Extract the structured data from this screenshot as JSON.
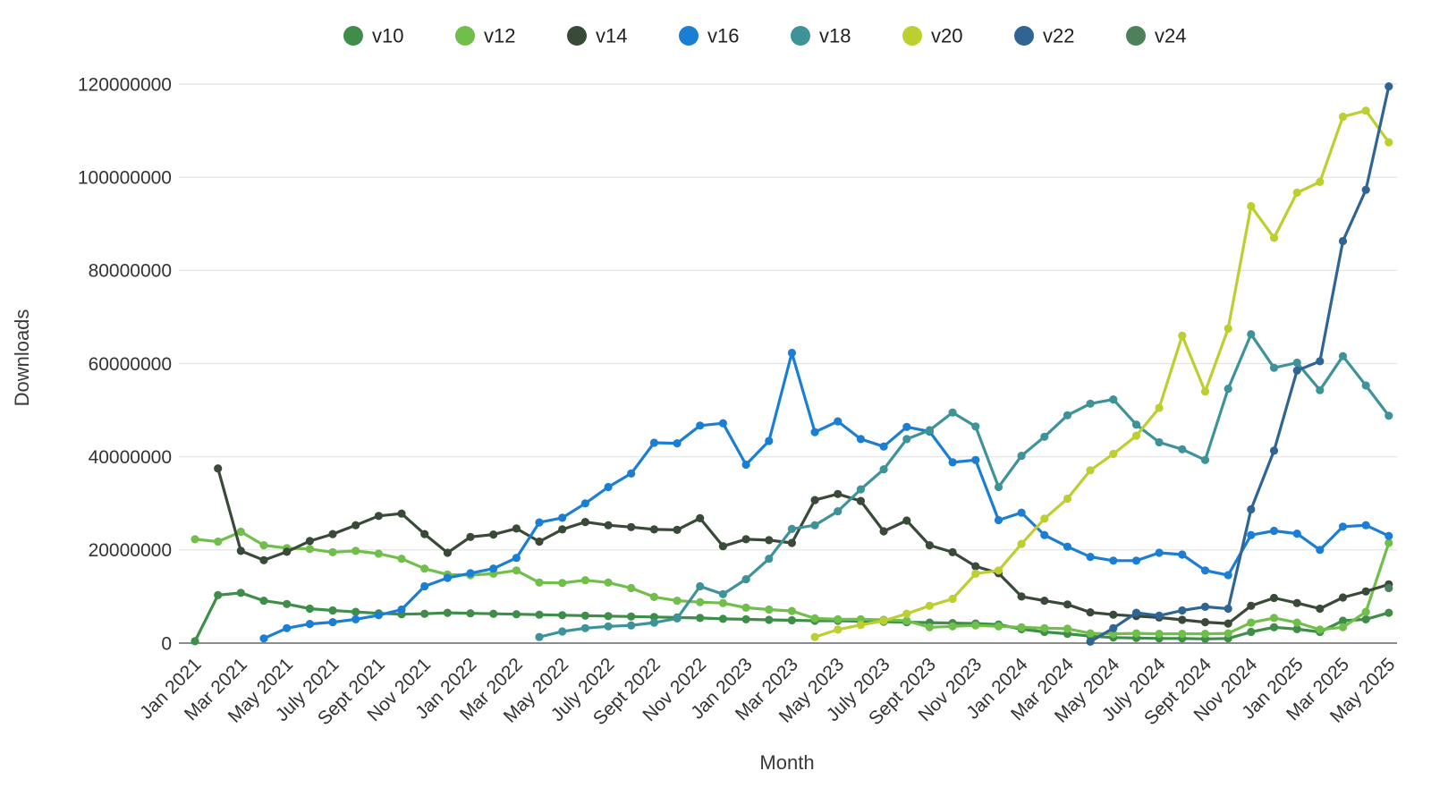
{
  "chart_data": {
    "type": "line",
    "title": "",
    "xlabel": "Month",
    "ylabel": "Downloads",
    "unit": "downloads (absolute count, values stored in millions)",
    "ylim_millions": [
      0,
      120
    ],
    "ytick_step_millions": 20,
    "ytick_labels": [
      "0",
      "20000000",
      "40000000",
      "60000000",
      "80000000",
      "100000000",
      "120000000"
    ],
    "grid": "horizontal",
    "legend_position": "top",
    "x": [
      "Jan 2021",
      "Feb 2021",
      "Mar 2021",
      "Apr 2021",
      "May 2021",
      "Jun 2021",
      "Jul 2021",
      "Aug 2021",
      "Sep 2021",
      "Oct 2021",
      "Nov 2021",
      "Dec 2021",
      "Jan 2022",
      "Feb 2022",
      "Mar 2022",
      "Apr 2022",
      "May 2022",
      "Jun 2022",
      "Jul 2022",
      "Aug 2022",
      "Sep 2022",
      "Oct 2022",
      "Nov 2022",
      "Dec 2022",
      "Jan 2023",
      "Feb 2023",
      "Mar 2023",
      "Apr 2023",
      "May 2023",
      "Jun 2023",
      "Jul 2023",
      "Aug 2023",
      "Sep 2023",
      "Oct 2023",
      "Nov 2023",
      "Dec 2023",
      "Jan 2024",
      "Feb 2024",
      "Mar 2024",
      "Apr 2024",
      "May 2024",
      "Jun 2024",
      "Jul 2024",
      "Aug 2024",
      "Sep 2024",
      "Oct 2024",
      "Nov 2024",
      "Dec 2024",
      "Jan 2025",
      "Feb 2025",
      "Mar 2025",
      "Apr 2025",
      "May 2025"
    ],
    "xtick_every": 2,
    "xtick_labels": [
      "Jan 2021",
      "Mar 2021",
      "May 2021",
      "July 2021",
      "Sept 2021",
      "Nov 2021",
      "Jan 2022",
      "Mar 2022",
      "May 2022",
      "July 2022",
      "Sept 2022",
      "Nov 2022",
      "Jan 2023",
      "Mar 2023",
      "May 2023",
      "July 2023",
      "Sept 2023",
      "Nov 2023",
      "Jan 2024",
      "Mar 2024",
      "May 2024",
      "July 2024",
      "Sept 2024",
      "Nov 2024",
      "Jan 2025",
      "Mar 2025",
      "May 2025"
    ],
    "series": [
      {
        "name": "v10",
        "color": "#3e8e49",
        "values_millions": [
          0.4,
          10.3,
          10.8,
          9.1,
          8.4,
          7.4,
          7.0,
          6.7,
          6.4,
          6.2,
          6.3,
          6.5,
          6.4,
          6.3,
          6.2,
          6.1,
          6.0,
          5.9,
          5.8,
          5.7,
          5.6,
          5.5,
          5.4,
          5.2,
          5.1,
          5.0,
          4.9,
          4.8,
          4.8,
          4.7,
          4.6,
          4.5,
          4.4,
          4.3,
          4.2,
          4.0,
          3.0,
          2.4,
          2.0,
          1.5,
          1.2,
          1.1,
          1.0,
          1.0,
          0.9,
          1.0,
          2.4,
          3.4,
          3.0,
          2.4,
          4.8,
          5.1,
          6.5
        ]
      },
      {
        "name": "v12",
        "color": "#70bf4a",
        "values_millions": [
          22.3,
          21.8,
          23.9,
          21.0,
          20.4,
          20.2,
          19.5,
          19.8,
          19.2,
          18.1,
          16.0,
          14.7,
          14.6,
          14.9,
          15.6,
          13.0,
          12.9,
          13.5,
          13.0,
          11.8,
          9.9,
          9.1,
          8.8,
          8.6,
          7.6,
          7.2,
          6.9,
          5.3,
          5.1,
          5.1,
          5.0,
          4.8,
          3.4,
          3.6,
          3.8,
          3.6,
          3.4,
          3.2,
          3.1,
          2.1,
          2.0,
          2.1,
          2.0,
          2.0,
          2.0,
          2.1,
          4.4,
          5.4,
          4.4,
          2.9,
          3.4,
          6.7,
          21.5
        ]
      },
      {
        "name": "v14",
        "color": "#3a4a38",
        "values_millions": [
          null,
          37.5,
          19.8,
          17.8,
          19.6,
          21.9,
          23.4,
          25.3,
          27.3,
          27.8,
          23.4,
          19.4,
          22.8,
          23.3,
          24.6,
          21.8,
          24.4,
          26.0,
          25.3,
          24.9,
          24.4,
          24.3,
          26.8,
          20.8,
          22.3,
          22.1,
          21.5,
          30.7,
          32.0,
          30.5,
          24.0,
          26.3,
          21.0,
          19.5,
          16.5,
          15.0,
          10.0,
          9.1,
          8.3,
          6.6,
          6.1,
          5.8,
          5.5,
          5.0,
          4.5,
          4.2,
          8.0,
          9.7,
          8.6,
          7.4,
          9.8,
          11.1,
          12.6
        ]
      },
      {
        "name": "v16",
        "color": "#1a7fd4",
        "values_millions": [
          null,
          null,
          null,
          1.0,
          3.2,
          4.1,
          4.5,
          5.1,
          6.0,
          7.2,
          12.2,
          14.0,
          15.0,
          16.0,
          18.3,
          25.9,
          26.9,
          30.0,
          33.5,
          36.4,
          43.0,
          42.9,
          46.7,
          47.2,
          38.3,
          43.4,
          62.3,
          45.3,
          47.6,
          43.8,
          42.2,
          46.4,
          45.4,
          38.8,
          39.3,
          26.4,
          28.0,
          23.2,
          20.7,
          18.5,
          17.7,
          17.7,
          19.4,
          19.0,
          15.6,
          14.6,
          23.2,
          24.1,
          23.5,
          20.0,
          25.0,
          25.3,
          23.0
        ]
      },
      {
        "name": "v18",
        "color": "#3d9397",
        "values_millions": [
          null,
          null,
          null,
          null,
          null,
          null,
          null,
          null,
          null,
          null,
          null,
          null,
          null,
          null,
          null,
          1.3,
          2.5,
          3.2,
          3.6,
          3.8,
          4.4,
          5.3,
          12.2,
          10.5,
          13.7,
          18.1,
          24.5,
          25.3,
          28.3,
          33.0,
          37.3,
          43.8,
          45.7,
          49.5,
          46.5,
          33.5,
          40.2,
          44.3,
          48.9,
          51.4,
          52.3,
          46.9,
          43.1,
          41.6,
          39.3,
          54.6,
          66.3,
          59.1,
          60.2,
          54.3,
          61.6,
          55.3,
          48.8
        ]
      },
      {
        "name": "v20",
        "color": "#bccf2f",
        "values_millions": [
          null,
          null,
          null,
          null,
          null,
          null,
          null,
          null,
          null,
          null,
          null,
          null,
          null,
          null,
          null,
          null,
          null,
          null,
          null,
          null,
          null,
          null,
          null,
          null,
          null,
          null,
          null,
          1.3,
          2.9,
          3.9,
          4.8,
          6.3,
          8.0,
          9.5,
          14.9,
          15.6,
          21.3,
          26.7,
          31.0,
          37.1,
          40.6,
          44.5,
          50.5,
          66.0,
          54.0,
          67.5,
          93.8,
          87.0,
          96.7,
          99.0,
          113.0,
          114.3,
          107.5
        ]
      },
      {
        "name": "v22",
        "color": "#2f6493",
        "values_millions": [
          null,
          null,
          null,
          null,
          null,
          null,
          null,
          null,
          null,
          null,
          null,
          null,
          null,
          null,
          null,
          null,
          null,
          null,
          null,
          null,
          null,
          null,
          null,
          null,
          null,
          null,
          null,
          null,
          null,
          null,
          null,
          null,
          null,
          null,
          null,
          null,
          null,
          null,
          null,
          0.3,
          3.2,
          6.5,
          5.9,
          7.0,
          7.8,
          7.4,
          28.7,
          41.3,
          58.5,
          60.5,
          86.3,
          97.3,
          119.5
        ]
      },
      {
        "name": "v24",
        "color": "#4d8159",
        "values_millions": [
          null,
          null,
          null,
          null,
          null,
          null,
          null,
          null,
          null,
          null,
          null,
          null,
          null,
          null,
          null,
          null,
          null,
          null,
          null,
          null,
          null,
          null,
          null,
          null,
          null,
          null,
          null,
          null,
          null,
          null,
          null,
          null,
          null,
          null,
          null,
          null,
          null,
          null,
          null,
          null,
          null,
          null,
          null,
          null,
          null,
          null,
          null,
          null,
          null,
          null,
          null,
          null,
          11.8
        ]
      }
    ]
  }
}
